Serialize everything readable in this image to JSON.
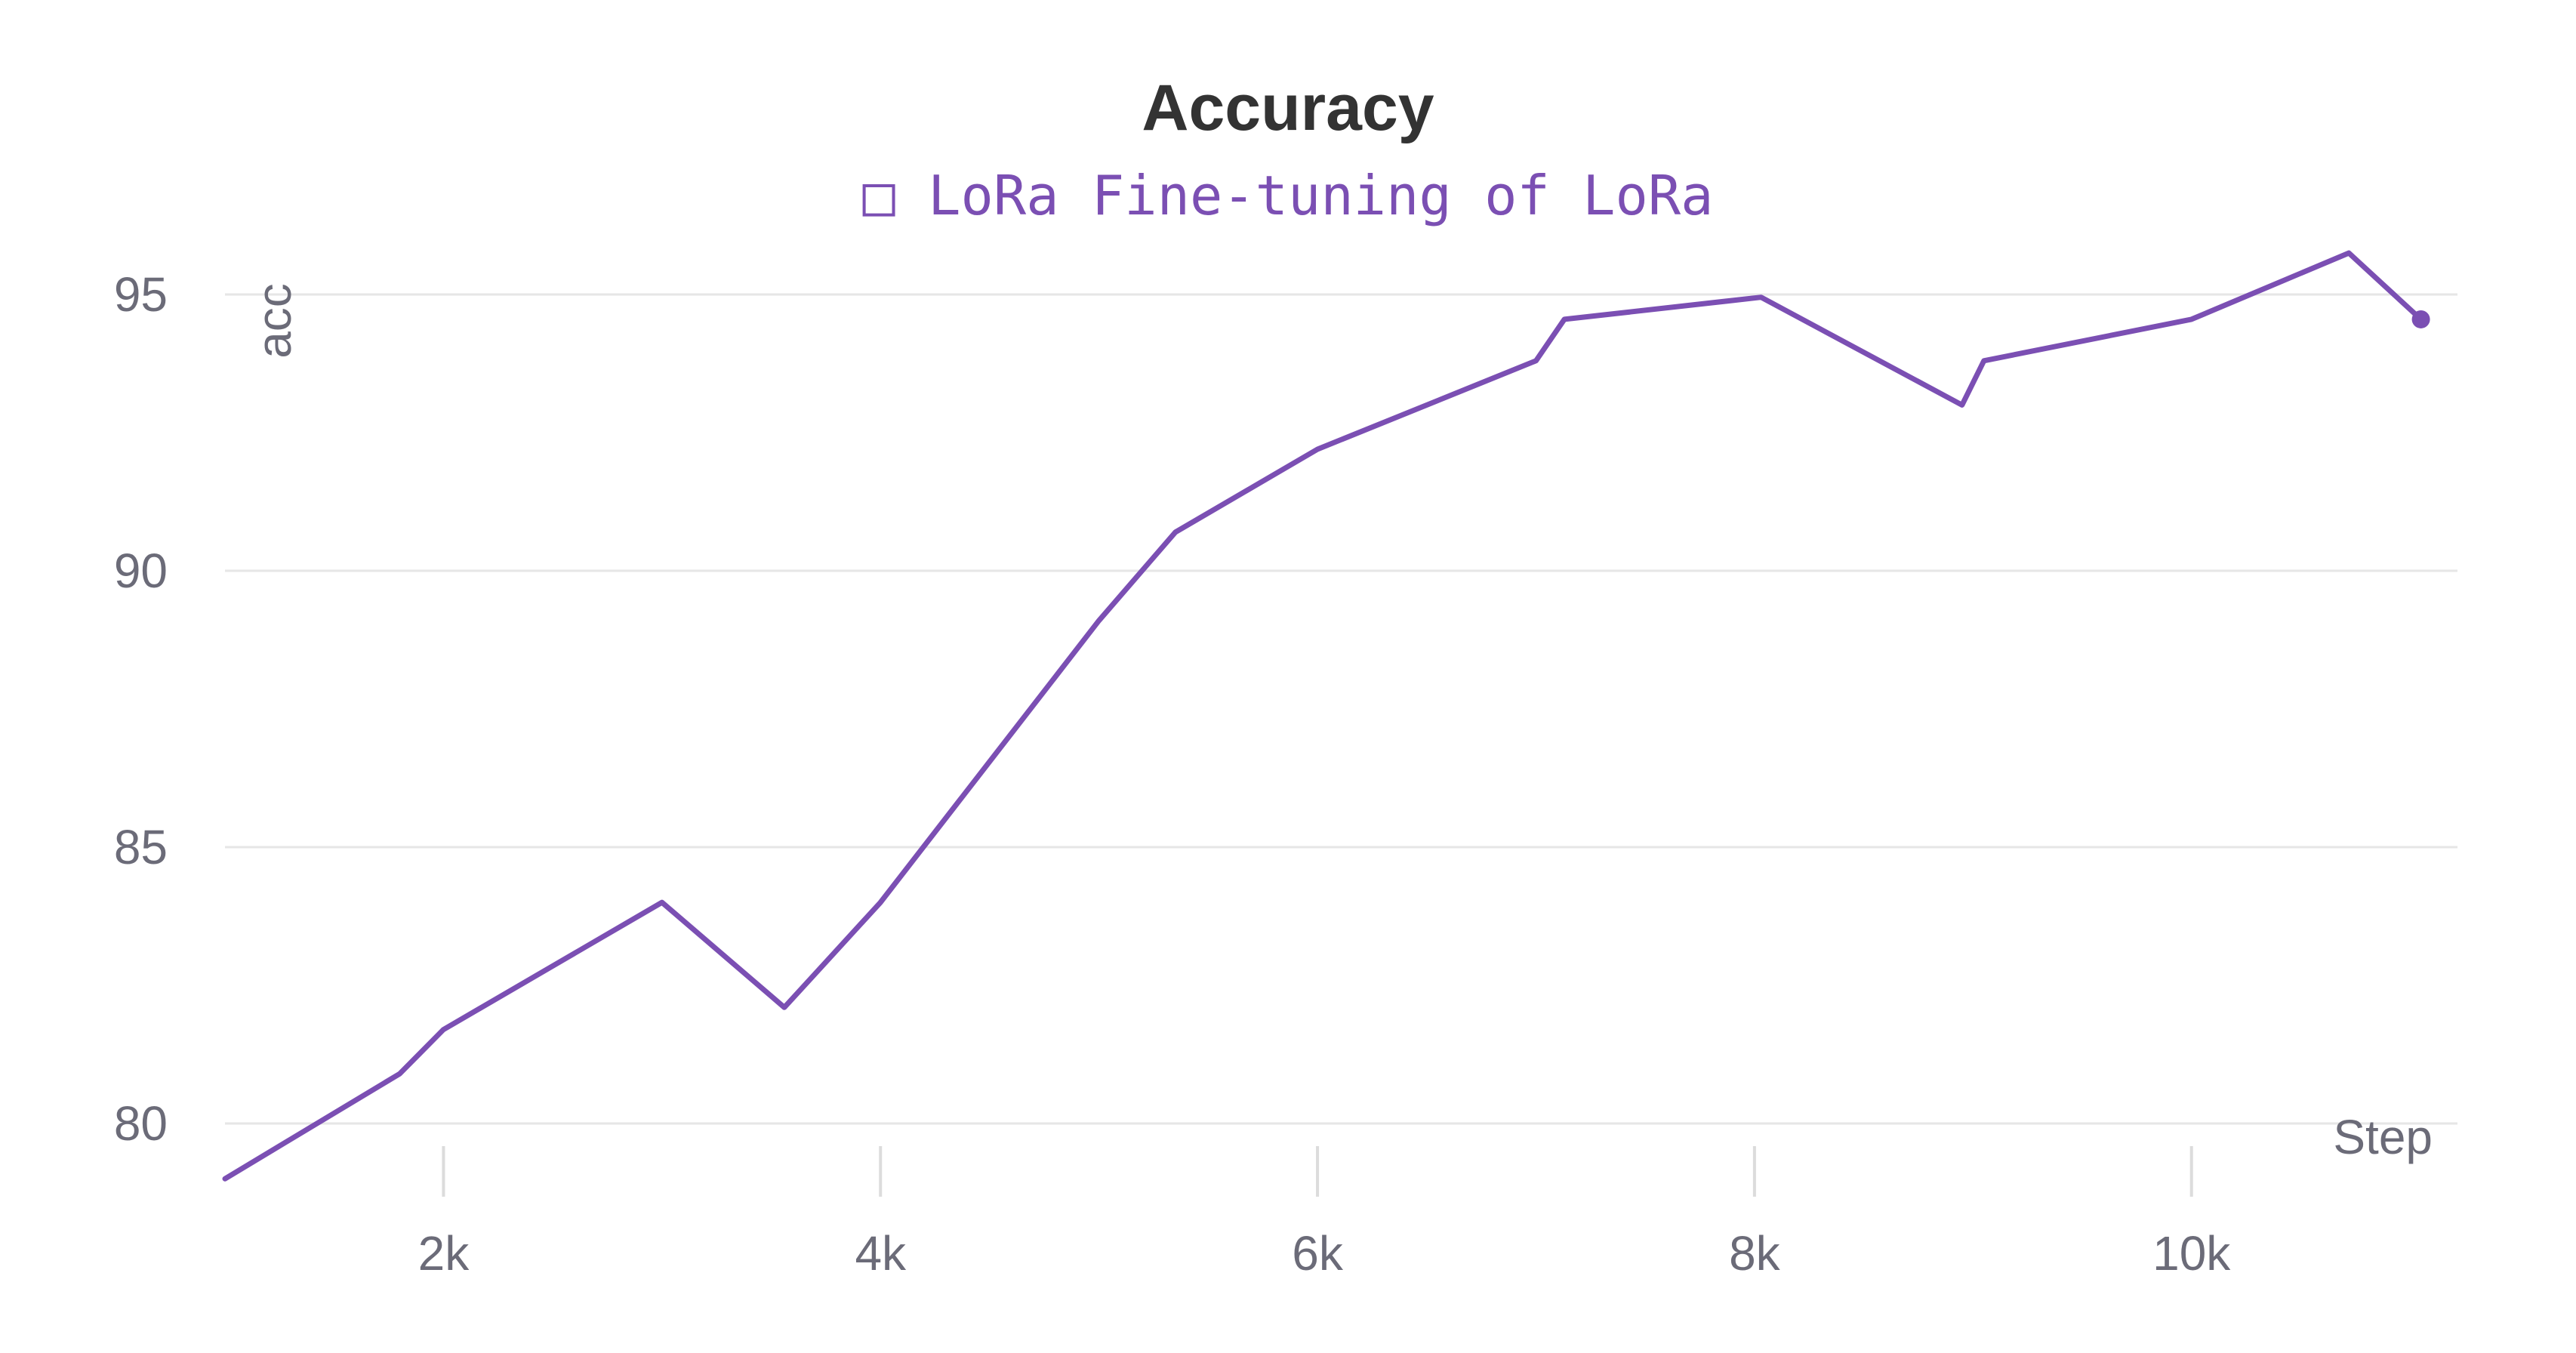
{
  "chart_data": {
    "type": "line",
    "title": "Accuracy",
    "xlabel": "Step",
    "ylabel": "acc",
    "xlim": [
      1000,
      11200
    ],
    "ylim": [
      79,
      95
    ],
    "x_ticks": [
      2000,
      4000,
      6000,
      8000,
      10000
    ],
    "x_tick_labels": [
      "2k",
      "4k",
      "6k",
      "8k",
      "10k"
    ],
    "y_ticks": [
      80,
      85,
      90,
      95
    ],
    "y_tick_labels": [
      "80",
      "85",
      "90",
      "95"
    ],
    "grid": true,
    "legend_position": "top-center",
    "series": [
      {
        "name": "LoRa Fine-tuning of LoRa",
        "legend_label": "□ LoRa Fine-tuning of LoRa",
        "color": "#7b4fb3",
        "x": [
          1000,
          1800,
          2000,
          3000,
          3560,
          4000,
          5000,
          5350,
          6000,
          7000,
          7130,
          8030,
          8950,
          9050,
          10000,
          10720,
          11050
        ],
        "y": [
          79.0,
          80.9,
          81.7,
          84.0,
          82.1,
          84.0,
          89.1,
          90.7,
          92.2,
          93.8,
          94.55,
          94.95,
          93.0,
          93.8,
          94.55,
          95.75,
          94.55
        ]
      }
    ]
  }
}
